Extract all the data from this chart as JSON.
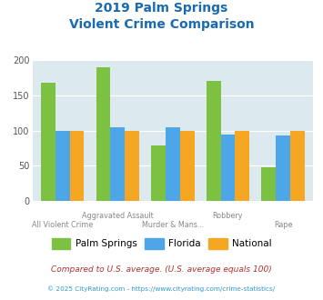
{
  "title_line1": "2019 Palm Springs",
  "title_line2": "Violent Crime Comparison",
  "palm_springs": [
    168,
    190,
    79,
    170,
    48
  ],
  "florida": [
    100,
    104,
    105,
    94,
    93
  ],
  "national": [
    100,
    100,
    100,
    100,
    100
  ],
  "bar_color_ps": "#7dc142",
  "bar_color_fl": "#4da6e8",
  "bar_color_nat": "#f5a623",
  "ylim": [
    0,
    200
  ],
  "yticks": [
    0,
    50,
    100,
    150,
    200
  ],
  "background_color": "#dce9ef",
  "title_color": "#1a6ab0",
  "row1_labels": [
    "",
    "Aggravated Assault",
    "",
    "Robbery",
    ""
  ],
  "row2_labels": [
    "All Violent Crime",
    "",
    "Murder & Mans...",
    "",
    "Rape"
  ],
  "footer_text": "Compared to U.S. average. (U.S. average equals 100)",
  "footer_color": "#b03030",
  "credit_text": "© 2025 CityRating.com - https://www.cityrating.com/crime-statistics/",
  "credit_color": "#3399cc",
  "legend_labels": [
    "Palm Springs",
    "Florida",
    "National"
  ]
}
